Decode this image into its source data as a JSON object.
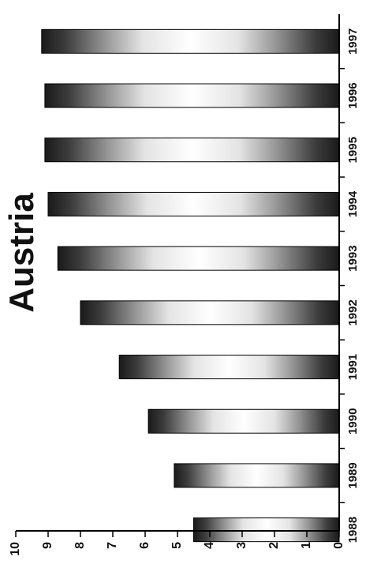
{
  "chart_data": {
    "type": "bar",
    "title": "Austria",
    "xlabel": "",
    "ylabel": "",
    "categories": [
      "1988",
      "1989",
      "1990",
      "1991",
      "1992",
      "1993",
      "1994",
      "1995",
      "1996",
      "1997"
    ],
    "values": [
      4.5,
      5.1,
      5.9,
      6.8,
      8.0,
      8.7,
      9.0,
      9.1,
      9.1,
      9.2
    ],
    "ylim": [
      0,
      10
    ],
    "yticks": [
      "0",
      "1",
      "2",
      "3",
      "4",
      "5",
      "6",
      "7",
      "8",
      "9",
      "10"
    ],
    "orientation": "rotated 90 degrees counter-clockwise",
    "grid": false,
    "legend": "none",
    "colors": {
      "bar_dark": "#1a1a1a",
      "bar_mid": "#9a9a9a",
      "bar_light": "#ffffff",
      "axis": "#000000"
    }
  }
}
